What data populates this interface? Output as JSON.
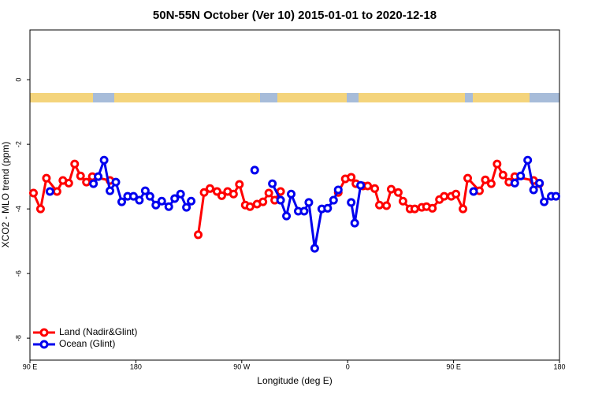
{
  "chart_data": {
    "type": "line",
    "title": "50N-55N October (Ver 10)   2015-01-01 to 2020-12-18",
    "x_label": "Longitude (deg E)",
    "y_label": "XCO2 - MLO trend (ppm)",
    "xlim": [
      -270,
      180
    ],
    "xticks": [
      {
        "value": -270,
        "label": "90 E"
      },
      {
        "value": -180,
        "label": "180"
      },
      {
        "value": -90,
        "label": "90 W"
      },
      0,
      {
        "value": 90,
        "label": "90 E"
      },
      180
    ],
    "ylim": [
      -8.68,
      1.54
    ],
    "yticks": [
      0,
      -2,
      -4,
      -6,
      -8
    ],
    "legend": "bottomleft",
    "series": [
      {
        "name": "Land (Nadir&Glint)",
        "color": "#ff0000",
        "x": [
          -267,
          -261,
          -256,
          -247,
          -242,
          -237,
          -232,
          -227,
          -222,
          -217,
          -202,
          null,
          -127,
          -122,
          -117,
          -111,
          -107,
          -102,
          -97,
          -92,
          -87,
          -83,
          -77,
          -72,
          -67,
          -62,
          -57,
          null,
          -8,
          -2,
          3,
          7,
          13,
          17,
          23,
          27,
          33,
          37,
          43,
          47,
          53,
          57,
          63,
          67,
          72,
          78,
          82,
          88,
          92,
          98,
          102,
          112,
          117,
          122,
          127,
          132,
          137,
          142,
          158,
          163
        ],
        "values": [
          -3.51,
          -4.0,
          -3.05,
          -3.46,
          -3.12,
          -3.2,
          -2.61,
          -2.98,
          -3.17,
          -3.0,
          -3.12,
          null,
          -4.8,
          -3.49,
          -3.37,
          -3.46,
          -3.59,
          -3.46,
          -3.54,
          -3.24,
          -3.88,
          -3.93,
          -3.85,
          -3.78,
          -3.51,
          -3.73,
          -3.46,
          null,
          -3.49,
          -3.07,
          -3.02,
          -3.22,
          -3.29,
          -3.29,
          -3.37,
          -3.88,
          -3.9,
          -3.39,
          -3.49,
          -3.76,
          -4.0,
          -4.0,
          -3.95,
          -3.93,
          -3.98,
          -3.71,
          -3.61,
          -3.61,
          -3.54,
          -4.0,
          -3.05,
          -3.44,
          -3.1,
          -3.22,
          -2.61,
          -2.95,
          -3.17,
          -3.0,
          -3.12,
          -3.22
        ]
      },
      {
        "name": "Ocean (Glint)",
        "color": "#0000ee",
        "x": [
          -253,
          null,
          -216,
          -212,
          -207,
          -202,
          -197,
          -192,
          -187,
          -182,
          -177,
          -172,
          -168,
          -163,
          -158,
          -152,
          -147,
          -142,
          -137,
          -133,
          null,
          -79,
          null,
          -64,
          -57,
          -52,
          -48,
          -42,
          -37,
          -33,
          -28,
          -22,
          -17,
          -12,
          -8,
          null,
          3,
          6,
          11,
          null,
          107,
          null,
          142,
          147,
          153,
          158,
          163,
          167,
          173,
          177
        ],
        "values": [
          -3.46,
          null,
          -3.22,
          -3.0,
          -2.49,
          -3.44,
          -3.17,
          -3.78,
          -3.61,
          -3.61,
          -3.73,
          -3.44,
          -3.61,
          -3.88,
          -3.76,
          -3.93,
          -3.68,
          -3.54,
          -3.95,
          -3.76,
          null,
          -2.8,
          null,
          -3.22,
          -3.73,
          -4.22,
          -3.54,
          -4.07,
          -4.07,
          -3.8,
          -5.22,
          -4.0,
          -3.98,
          -3.73,
          -3.41,
          null,
          -3.8,
          -4.44,
          -3.27,
          null,
          -3.46,
          null,
          -3.2,
          -2.98,
          -2.49,
          -3.41,
          -3.2,
          -3.78,
          -3.61,
          -3.61
        ]
      }
    ]
  }
}
